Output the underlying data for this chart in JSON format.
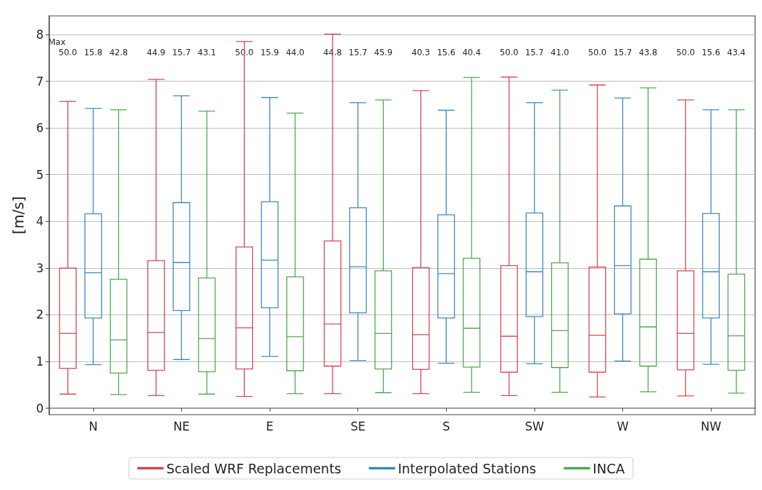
{
  "chart_data": {
    "type": "box",
    "ylabel": "[m/s]",
    "categories": [
      "N",
      "NE",
      "E",
      "SE",
      "S",
      "SW",
      "W",
      "NW"
    ],
    "ylim": [
      -0.14,
      8.4
    ],
    "yticks": [
      0,
      1,
      2,
      3,
      4,
      5,
      6,
      7,
      8
    ],
    "grid": "y",
    "legend": "bottom",
    "annotations": [
      "Max",
      "50.0",
      "15.8",
      "42.8",
      "44.9",
      "15.7",
      "43.1",
      "50.0",
      "15.9",
      "44.0",
      "44.8",
      "15.7",
      "45.9",
      "40.3",
      "15.6",
      "40.4",
      "50.0",
      "15.7",
      "41.0",
      "50.0",
      "15.7",
      "43.8",
      "50.0",
      "15.6",
      "43.4"
    ],
    "series": [
      {
        "name": "Scaled WRF Replacements",
        "color": "#d9434a",
        "boxes": [
          {
            "low": 0.3,
            "q1": 0.85,
            "median": 1.6,
            "q3": 3.0,
            "high": 6.57
          },
          {
            "low": 0.27,
            "q1": 0.81,
            "median": 1.62,
            "q3": 3.16,
            "high": 7.04
          },
          {
            "low": 0.25,
            "q1": 0.84,
            "median": 1.72,
            "q3": 3.45,
            "high": 7.85
          },
          {
            "low": 0.31,
            "q1": 0.9,
            "median": 1.8,
            "q3": 3.58,
            "high": 8.01
          },
          {
            "low": 0.31,
            "q1": 0.83,
            "median": 1.57,
            "q3": 3.01,
            "high": 6.8
          },
          {
            "low": 0.27,
            "q1": 0.77,
            "median": 1.54,
            "q3": 3.05,
            "high": 7.09
          },
          {
            "low": 0.24,
            "q1": 0.77,
            "median": 1.56,
            "q3": 3.02,
            "high": 6.92
          },
          {
            "low": 0.26,
            "q1": 0.82,
            "median": 1.6,
            "q3": 2.94,
            "high": 6.6
          }
        ]
      },
      {
        "name": "Interpolated Stations",
        "color": "#3a86bf",
        "boxes": [
          {
            "low": 0.93,
            "q1": 1.93,
            "median": 2.9,
            "q3": 4.16,
            "high": 6.42
          },
          {
            "low": 1.04,
            "q1": 2.09,
            "median": 3.12,
            "q3": 4.4,
            "high": 6.69
          },
          {
            "low": 1.11,
            "q1": 2.15,
            "median": 3.17,
            "q3": 4.42,
            "high": 6.65
          },
          {
            "low": 1.02,
            "q1": 2.04,
            "median": 3.03,
            "q3": 4.29,
            "high": 6.54
          },
          {
            "low": 0.96,
            "q1": 1.93,
            "median": 2.88,
            "q3": 4.14,
            "high": 6.38
          },
          {
            "low": 0.95,
            "q1": 1.96,
            "median": 2.92,
            "q3": 4.18,
            "high": 6.54
          },
          {
            "low": 1.01,
            "q1": 2.02,
            "median": 3.05,
            "q3": 4.33,
            "high": 6.64
          },
          {
            "low": 0.94,
            "q1": 1.93,
            "median": 2.92,
            "q3": 4.17,
            "high": 6.39
          }
        ]
      },
      {
        "name": "INCA",
        "color": "#4aa84a",
        "boxes": [
          {
            "low": 0.29,
            "q1": 0.75,
            "median": 1.46,
            "q3": 2.76,
            "high": 6.39
          },
          {
            "low": 0.3,
            "q1": 0.78,
            "median": 1.49,
            "q3": 2.79,
            "high": 6.36
          },
          {
            "low": 0.31,
            "q1": 0.8,
            "median": 1.53,
            "q3": 2.81,
            "high": 6.32
          },
          {
            "low": 0.33,
            "q1": 0.84,
            "median": 1.6,
            "q3": 2.94,
            "high": 6.6
          },
          {
            "low": 0.34,
            "q1": 0.88,
            "median": 1.71,
            "q3": 3.21,
            "high": 7.08
          },
          {
            "low": 0.34,
            "q1": 0.87,
            "median": 1.66,
            "q3": 3.11,
            "high": 6.81
          },
          {
            "low": 0.35,
            "q1": 0.9,
            "median": 1.74,
            "q3": 3.19,
            "high": 6.86
          },
          {
            "low": 0.32,
            "q1": 0.81,
            "median": 1.55,
            "q3": 2.87,
            "high": 6.39
          }
        ]
      }
    ]
  }
}
